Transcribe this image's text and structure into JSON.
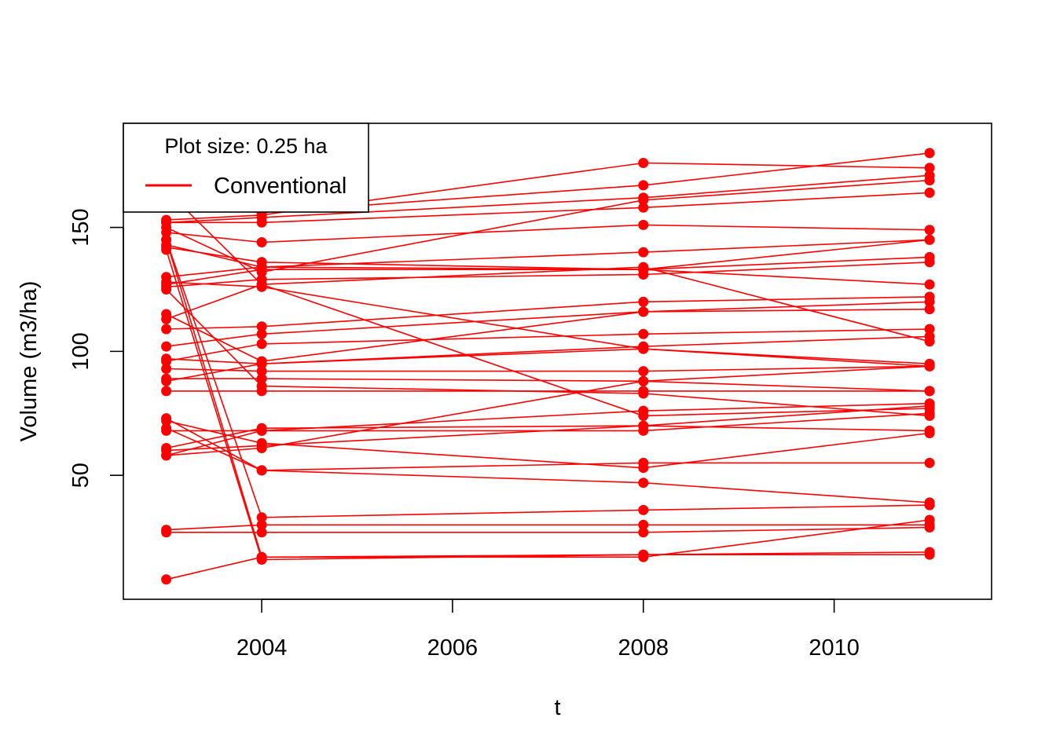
{
  "chart_data": {
    "type": "line",
    "xlabel": "t",
    "ylabel": "Volume (m3/ha)",
    "xlim": [
      2002.55,
      2011.65
    ],
    "ylim": [
      0,
      192
    ],
    "xticks": [
      2004,
      2006,
      2008,
      2010
    ],
    "yticks": [
      50,
      100,
      150
    ],
    "grid": false,
    "legend_position": "top-left",
    "legend": {
      "title": "Plot size: 0.25 ha",
      "entries": [
        {
          "label": "Conventional",
          "color": "#ff0000"
        }
      ]
    },
    "colors": {
      "series": "#ff0000",
      "axis": "#000000",
      "background": "#ffffff"
    },
    "x": [
      2003,
      2004,
      2008,
      2011
    ],
    "series": [
      {
        "values": [
          152,
          152,
          158,
          164
        ]
      },
      {
        "values": [
          153,
          155,
          176,
          174
        ]
      },
      {
        "values": [
          152,
          154,
          162,
          171
        ]
      },
      {
        "values": [
          164,
          156,
          167,
          180
        ]
      },
      {
        "values": [
          148,
          144,
          151,
          149
        ]
      },
      {
        "values": [
          143,
          134,
          133,
          145
        ]
      },
      {
        "values": [
          150,
          132,
          161,
          169
        ]
      },
      {
        "values": [
          130,
          134,
          140,
          145
        ]
      },
      {
        "values": [
          127,
          133,
          133,
          138
        ]
      },
      {
        "values": [
          126,
          129,
          131,
          136
        ]
      },
      {
        "values": [
          142,
          136,
          133,
          127
        ]
      },
      {
        "values": [
          113,
          127,
          134,
          104
        ]
      },
      {
        "values": [
          128,
          126,
          101,
          94
        ]
      },
      {
        "values": [
          109,
          110,
          120,
          122
        ]
      },
      {
        "values": [
          102,
          107,
          116,
          120
        ]
      },
      {
        "values": [
          115,
          96,
          116,
          117
        ]
      },
      {
        "values": [
          96,
          103,
          107,
          109
        ]
      },
      {
        "values": [
          88,
          95,
          102,
          106
        ]
      },
      {
        "values": [
          97,
          95,
          101,
          95
        ]
      },
      {
        "values": [
          93,
          92,
          92,
          94
        ]
      },
      {
        "values": [
          89,
          89,
          88,
          84
        ]
      },
      {
        "values": [
          84,
          84,
          84,
          84
        ]
      },
      {
        "values": [
          125,
          86,
          83,
          74
        ]
      },
      {
        "values": [
          165,
          127,
          74,
          77
        ]
      },
      {
        "values": [
          58,
          68,
          76,
          79
        ]
      },
      {
        "values": [
          61,
          69,
          70,
          78
        ]
      },
      {
        "values": [
          68,
          68,
          68,
          75
        ]
      },
      {
        "values": [
          60,
          62,
          70,
          68
        ]
      },
      {
        "values": [
          72,
          63,
          53,
          67
        ]
      },
      {
        "values": [
          58,
          61,
          88,
          94
        ]
      },
      {
        "values": [
          69,
          52,
          55,
          55
        ]
      },
      {
        "values": [
          73,
          52,
          47,
          39
        ]
      },
      {
        "values": [
          145,
          33,
          36,
          38
        ]
      },
      {
        "values": [
          28,
          30,
          30,
          30
        ]
      },
      {
        "values": [
          27,
          27,
          27,
          29
        ]
      },
      {
        "values": [
          145,
          17,
          17,
          32
        ]
      },
      {
        "values": [
          141,
          16,
          18,
          19
        ]
      },
      {
        "values": [
          8,
          17,
          18,
          18
        ]
      }
    ]
  }
}
